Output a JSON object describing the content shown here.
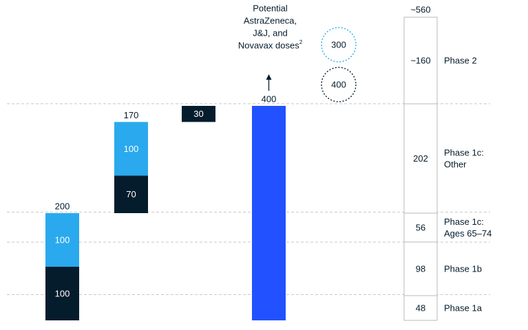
{
  "colors": {
    "navy": "#051c2c",
    "cyan": "#2aa9ee",
    "blue": "#2251ff",
    "gridline": "#c8c8c8",
    "table_border": "#b8b8b8",
    "circle_300": "#2aa9ee",
    "circle_400": "#051c2c"
  },
  "chart_data": {
    "type": "bar",
    "subtype": "waterfall",
    "ylim": [
      0,
      560
    ],
    "gridlines_at": [
      48,
      146,
      202,
      404
    ],
    "bars": [
      {
        "total": 200,
        "total_label": "200",
        "segments": [
          {
            "value": 100,
            "label": "100",
            "color": "navy"
          },
          {
            "value": 100,
            "label": "100",
            "color": "cyan"
          }
        ]
      },
      {
        "total": 170,
        "total_label": "170",
        "base": 200,
        "segments": [
          {
            "value": 70,
            "label": "70",
            "color": "navy"
          },
          {
            "value": 100,
            "label": "100",
            "color": "cyan"
          }
        ]
      },
      {
        "base": 370,
        "segments": [
          {
            "value": 30,
            "label": "30",
            "color": "navy"
          }
        ]
      },
      {
        "total": 400,
        "total_label": "400",
        "segments": [
          {
            "value": 400,
            "label": "",
            "color": "blue"
          }
        ]
      }
    ],
    "annotation": {
      "lines": [
        "Potential",
        "AstraZeneca,",
        "J&J, and",
        "Novavax doses"
      ],
      "superscript": "2"
    },
    "circles": [
      {
        "label": "300",
        "style": "dotted",
        "color": "circle_300"
      },
      {
        "label": "400",
        "style": "dotted",
        "color": "circle_400"
      }
    ],
    "stack": {
      "top_label": "~560",
      "segments": [
        {
          "value": 48,
          "label": "48",
          "phase": [
            "Phase 1a"
          ]
        },
        {
          "value": 98,
          "label": "98",
          "phase": [
            "Phase 1b"
          ]
        },
        {
          "value": 56,
          "label": "56",
          "phase": [
            "Phase 1c:",
            "Ages 65–74"
          ]
        },
        {
          "value": 202,
          "label": "202",
          "phase": [
            "Phase 1c:",
            "Other"
          ]
        },
        {
          "value": 156,
          "label": "~160",
          "phase": [
            "Phase 2"
          ]
        }
      ]
    }
  }
}
